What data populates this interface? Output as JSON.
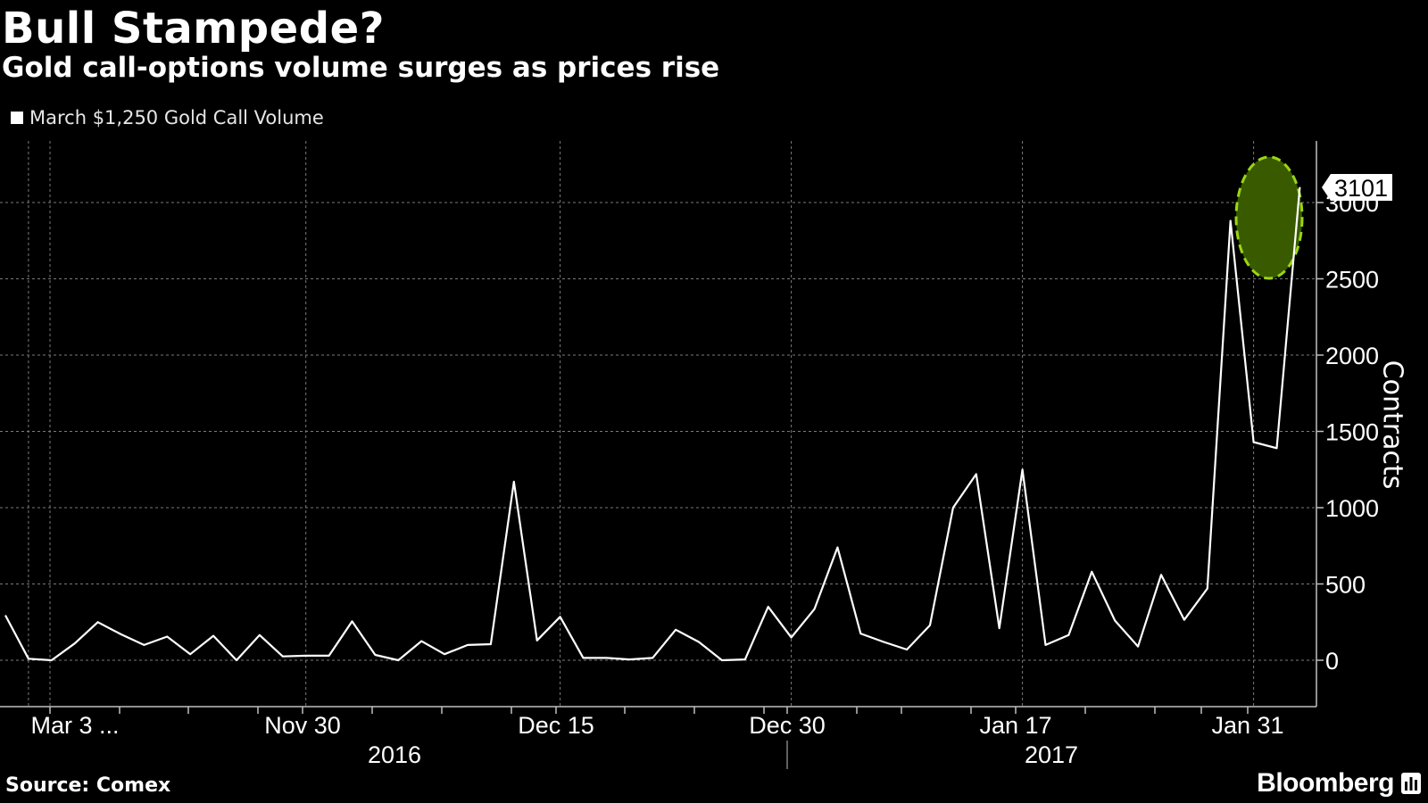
{
  "title": "Bull Stampede?",
  "subtitle": "Gold call-options volume surges as prices rise",
  "source": "Source: Comex",
  "brand": "Bloomberg",
  "chart_data": {
    "type": "line",
    "series": [
      {
        "name": "March $1,250 Gold Call Volume",
        "color": "#ffffff",
        "values": [
          295,
          10,
          0,
          110,
          250,
          170,
          100,
          155,
          40,
          160,
          0,
          165,
          25,
          30,
          30,
          255,
          35,
          0,
          125,
          40,
          100,
          105,
          1170,
          130,
          285,
          15,
          15,
          5,
          15,
          200,
          120,
          0,
          5,
          350,
          150,
          335,
          740,
          175,
          120,
          70,
          230,
          1000,
          1220,
          210,
          1250,
          100,
          165,
          580,
          260,
          90,
          560,
          265,
          470,
          2880,
          1430,
          1390,
          3101
        ]
      }
    ],
    "x_tick_labels": [
      "Mar 3 ...",
      "Nov 30",
      "Dec 15",
      "Dec 30",
      "Jan 17",
      "Jan 31"
    ],
    "x_year_labels": [
      "2016",
      "2017"
    ],
    "y_ticks": [
      0,
      500,
      1000,
      1500,
      2000,
      2500,
      3000
    ],
    "ylim": [
      -300,
      3400
    ],
    "ylabel": "Contracts",
    "last_value_label": "3101",
    "highlight_color": "#3a5a00",
    "highlight_border": "#9ad614",
    "grid": true,
    "legend": "top-left"
  }
}
